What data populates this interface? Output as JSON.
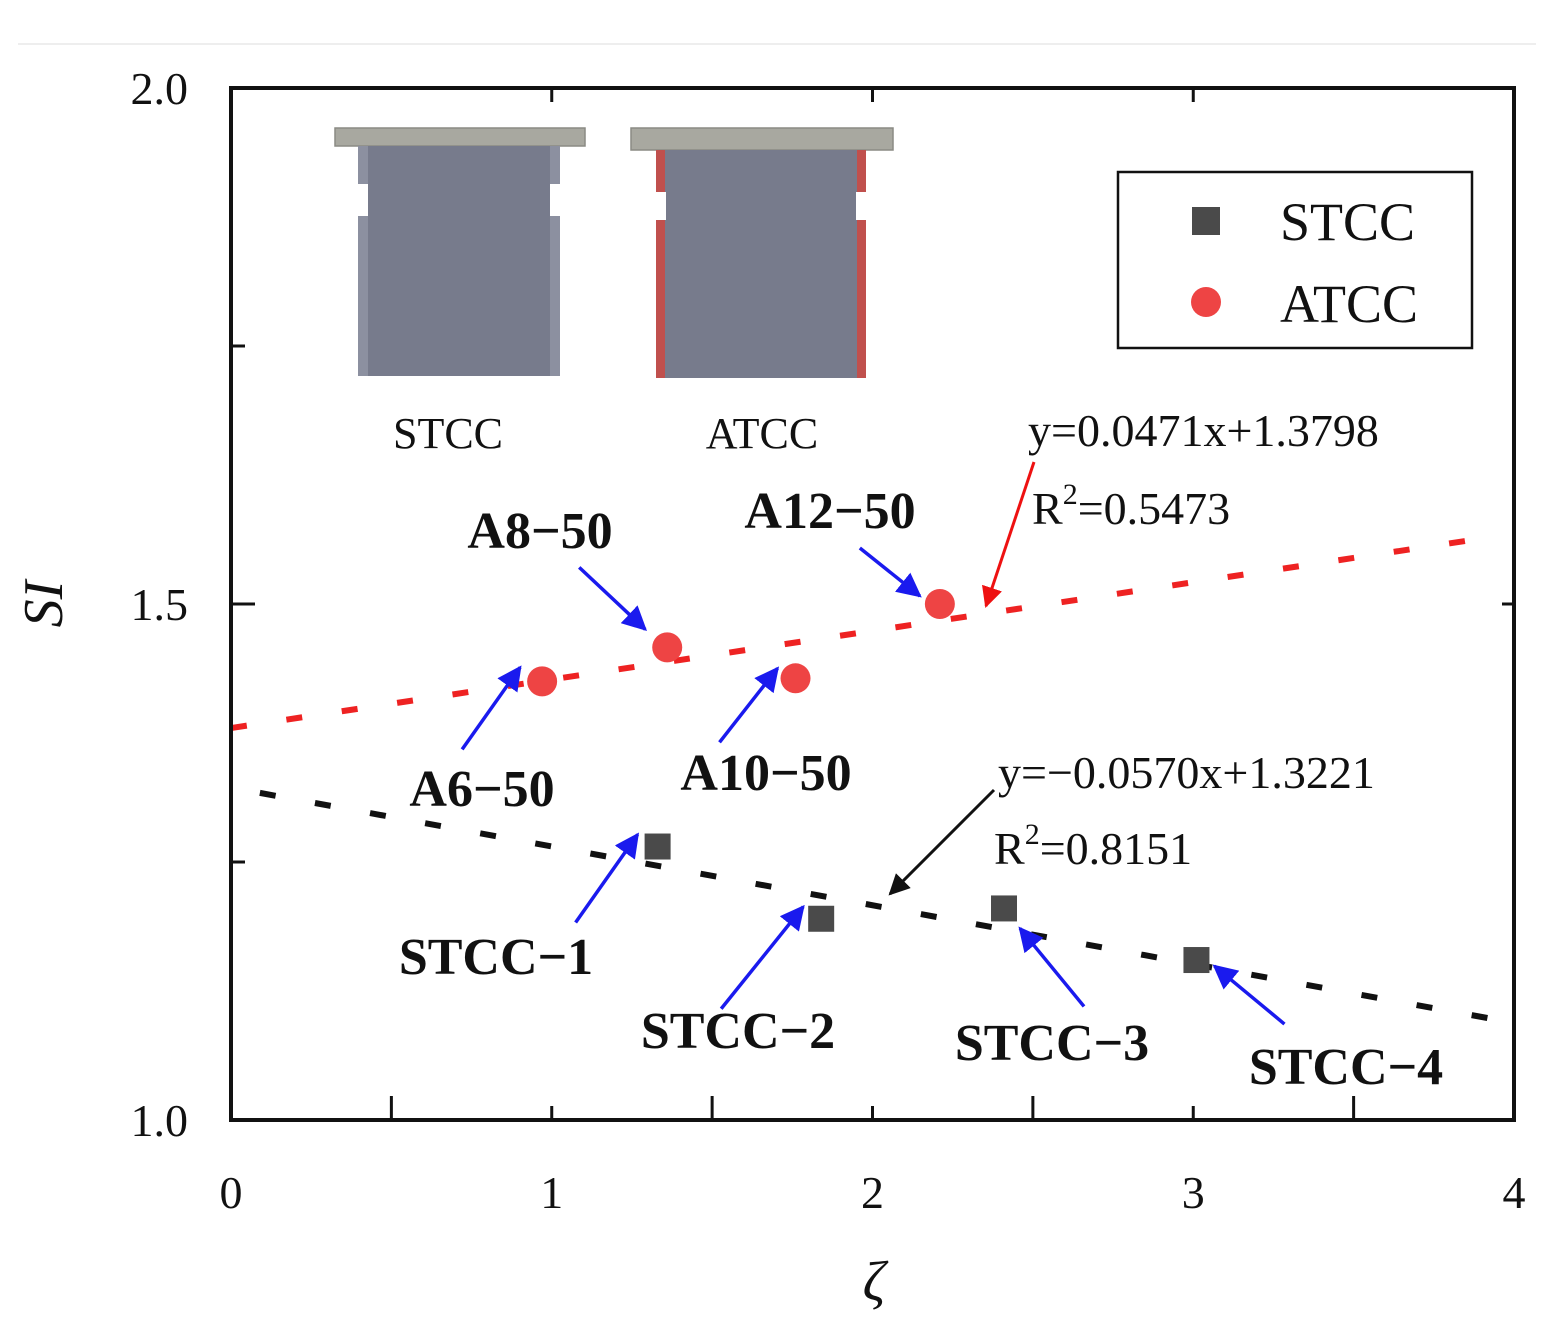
{
  "chart_data": {
    "type": "scatter",
    "title": "",
    "xlabel": "ζ",
    "ylabel": "SI",
    "xlim": [
      0,
      4
    ],
    "ylim": [
      1.0,
      2.0
    ],
    "x_ticks": [
      0,
      1,
      2,
      3,
      4
    ],
    "x_tick_labels": [
      "0",
      "1",
      "2",
      "3",
      "4"
    ],
    "y_ticks": [
      1.0,
      1.5,
      2.0
    ],
    "y_tick_labels": [
      "1.0",
      "1.5",
      "2.0"
    ],
    "y_minor_ticks": [
      1.25,
      1.75
    ],
    "legend": {
      "position": "top-right",
      "entries": [
        {
          "label": "STCC",
          "marker": "square",
          "color": "#4a4a4a"
        },
        {
          "label": "ATCC",
          "marker": "circle",
          "color": "#ee4444"
        }
      ]
    },
    "series": [
      {
        "name": "STCC",
        "marker": "square",
        "color": "#4a4a4a",
        "points": [
          {
            "label": "STCC−1",
            "x": 1.33,
            "y": 1.265
          },
          {
            "label": "STCC−2",
            "x": 1.84,
            "y": 1.195
          },
          {
            "label": "STCC−3",
            "x": 2.41,
            "y": 1.205
          },
          {
            "label": "STCC−4",
            "x": 3.01,
            "y": 1.155
          }
        ],
        "fit": {
          "slope": -0.057,
          "intercept": 1.3221,
          "equation": "y=−0.0570x+1.3221",
          "r2_prefix": "R",
          "r2_sup": "2",
          "r2_value": "=0.8151",
          "color": "#111111"
        }
      },
      {
        "name": "ATCC",
        "marker": "circle",
        "color": "#ee4444",
        "points": [
          {
            "label": "A6−50",
            "x": 0.97,
            "y": 1.425
          },
          {
            "label": "A8−50",
            "x": 1.36,
            "y": 1.458
          },
          {
            "label": "A10−50",
            "x": 1.76,
            "y": 1.428
          },
          {
            "label": "A12−50",
            "x": 2.21,
            "y": 1.5
          }
        ],
        "fit": {
          "slope": 0.0471,
          "intercept": 1.3798,
          "equation": "y=0.0471x+1.3798",
          "r2_prefix": "R",
          "r2_sup": "2",
          "r2_value": "=0.5473",
          "color": "#ee2222"
        }
      }
    ],
    "inset": {
      "labels": [
        "STCC",
        "ATCC"
      ]
    },
    "colors": {
      "arrow_blue": "#1a1aee",
      "arrow_red": "#ee1111",
      "arrow_black": "#111111",
      "inset_body": "#777b8c",
      "inset_cap": "#a8a8a0",
      "inset_atcc_edge": "#c0504d"
    }
  }
}
